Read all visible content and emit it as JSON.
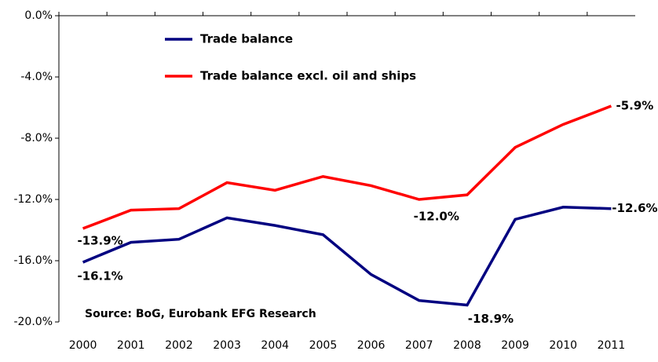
{
  "chart_data": {
    "type": "line",
    "categories": [
      "2000",
      "2001",
      "2002",
      "2003",
      "2004",
      "2005",
      "2006",
      "2007",
      "2008",
      "2009",
      "2010",
      "2011"
    ],
    "series": [
      {
        "name": "Trade balance",
        "color": "#000080",
        "values": [
          -16.1,
          -14.8,
          -14.6,
          -13.2,
          -13.7,
          -14.3,
          -16.9,
          -18.6,
          -18.9,
          -13.3,
          -12.5,
          -12.6
        ],
        "value_labels": [
          "-16.1%",
          null,
          null,
          null,
          null,
          null,
          null,
          null,
          "-18.9%",
          null,
          null,
          "-12.6%"
        ]
      },
      {
        "name": "Trade balance excl. oil and ships",
        "color": "#ff0000",
        "values": [
          -13.9,
          -12.7,
          -12.6,
          -10.9,
          -11.4,
          -10.5,
          -11.1,
          -12.0,
          -11.7,
          -8.6,
          -7.1,
          -5.9
        ],
        "value_labels": [
          "-13.9%",
          null,
          null,
          null,
          null,
          null,
          null,
          "-12.0%",
          null,
          null,
          null,
          "-5.9%"
        ]
      }
    ],
    "ylim": [
      -20,
      0
    ],
    "yticks": [
      {
        "value": 0,
        "label": "0.0%"
      },
      {
        "value": -4,
        "label": "-4.0%"
      },
      {
        "value": -8,
        "label": "-8.0%"
      },
      {
        "value": -12,
        "label": "-12.0%"
      },
      {
        "value": -16,
        "label": "-16.0%"
      },
      {
        "value": -20,
        "label": "-20.0%"
      }
    ],
    "annotation": "Source: BoG, Eurobank EFG Research"
  }
}
